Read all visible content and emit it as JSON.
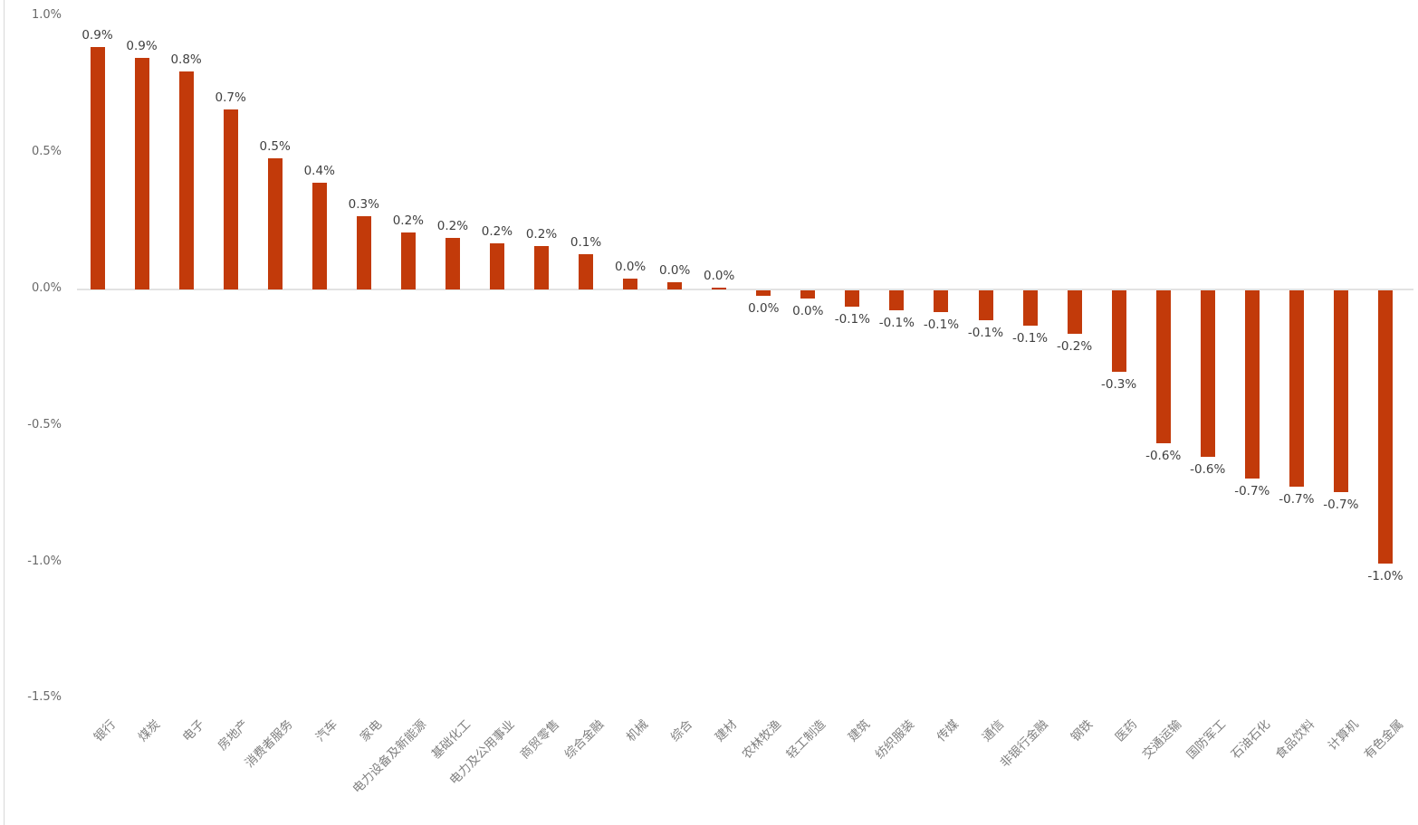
{
  "chart": {
    "title": "",
    "bar_color": "#c23a0a",
    "axis_line_color": "#e2e2e2",
    "border_color": "#d9d9d9",
    "data_label_color": "#3f3f3f",
    "tick_label_color": "#696969",
    "category_label_color": "#7f7f7f"
  },
  "chart_data": {
    "type": "bar",
    "title": "",
    "xlabel": "",
    "ylabel": "",
    "ylim": [
      -1.5,
      1.0
    ],
    "grid": false,
    "legend": false,
    "bar_color": "#c23a0a",
    "ytick_values": [
      1.0,
      0.5,
      0.0,
      -0.5,
      -1.0,
      -1.5
    ],
    "ytick_labels": [
      "1.0%",
      "0.5%",
      "0.0%",
      "-0.5%",
      "-1.0%",
      "-1.5%"
    ],
    "categories": [
      "银行",
      "煤炭",
      "电子",
      "房地产",
      "消费者服务",
      "汽车",
      "家电",
      "电力设备及新能源",
      "基础化工",
      "电力及公用事业",
      "商贸零售",
      "综合金融",
      "机械",
      "综合",
      "建材",
      "农林牧渔",
      "轻工制造",
      "建筑",
      "纺织服装",
      "传媒",
      "通信",
      "非银行金融",
      "钢铁",
      "医药",
      "交通运输",
      "国防军工",
      "石油石化",
      "食品饮料",
      "计算机",
      "有色金属"
    ],
    "values": [
      0.89,
      0.85,
      0.8,
      0.66,
      0.48,
      0.39,
      0.27,
      0.21,
      0.19,
      0.17,
      0.16,
      0.13,
      0.04,
      0.025,
      0.008,
      -0.02,
      -0.03,
      -0.06,
      -0.073,
      -0.08,
      -0.11,
      -0.13,
      -0.16,
      -0.3,
      -0.56,
      -0.61,
      -0.69,
      -0.72,
      -0.74,
      -1.0
    ],
    "data_labels": [
      "0.9%",
      "0.9%",
      "0.8%",
      "0.7%",
      "0.5%",
      "0.4%",
      "0.3%",
      "0.2%",
      "0.2%",
      "0.2%",
      "0.2%",
      "0.1%",
      "0.0%",
      "0.0%",
      "0.0%",
      "0.0%",
      "0.0%",
      "-0.1%",
      "-0.1%",
      "-0.1%",
      "-0.1%",
      "-0.1%",
      "-0.2%",
      "-0.3%",
      "-0.6%",
      "-0.6%",
      "-0.7%",
      "-0.7%",
      "-0.7%",
      "-1.0%"
    ]
  }
}
